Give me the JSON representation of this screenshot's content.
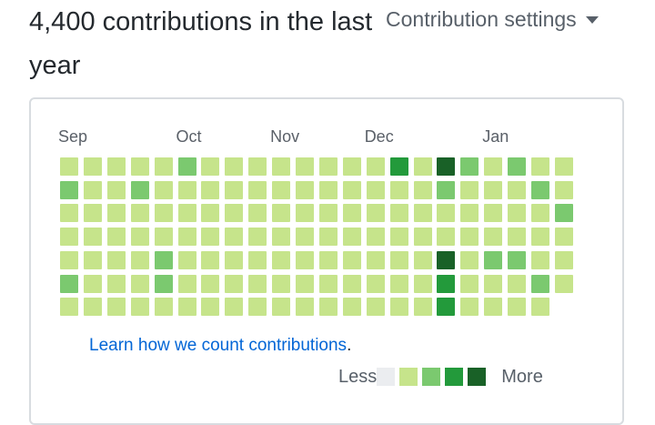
{
  "header": {
    "title": "4,400 contributions in the last year",
    "settings_label": "Contribution settings"
  },
  "calendar": {
    "months": [
      {
        "label": "Sep",
        "week": 0
      },
      {
        "label": "Oct",
        "week": 5
      },
      {
        "label": "Nov",
        "week": 9
      },
      {
        "label": "Dec",
        "week": 13
      },
      {
        "label": "Jan",
        "week": 18
      }
    ],
    "colors": [
      "#ebedf0",
      "#c6e48b",
      "#7bc96f",
      "#239a3b",
      "#196127"
    ],
    "weeks": [
      [
        1,
        2,
        1,
        1,
        1,
        2,
        1
      ],
      [
        1,
        1,
        1,
        1,
        1,
        1,
        1
      ],
      [
        1,
        1,
        1,
        1,
        1,
        1,
        1
      ],
      [
        1,
        2,
        1,
        1,
        1,
        1,
        1
      ],
      [
        1,
        1,
        1,
        1,
        2,
        2,
        1
      ],
      [
        2,
        1,
        1,
        1,
        1,
        1,
        1
      ],
      [
        1,
        1,
        1,
        1,
        1,
        1,
        1
      ],
      [
        1,
        1,
        1,
        1,
        1,
        1,
        1
      ],
      [
        1,
        1,
        1,
        1,
        1,
        1,
        1
      ],
      [
        1,
        1,
        1,
        1,
        1,
        1,
        1
      ],
      [
        1,
        1,
        1,
        1,
        1,
        1,
        1
      ],
      [
        1,
        1,
        1,
        1,
        1,
        1,
        1
      ],
      [
        1,
        1,
        1,
        1,
        1,
        1,
        1
      ],
      [
        1,
        1,
        1,
        1,
        1,
        1,
        1
      ],
      [
        3,
        1,
        1,
        1,
        1,
        1,
        1
      ],
      [
        1,
        1,
        1,
        1,
        1,
        1,
        1
      ],
      [
        4,
        2,
        1,
        1,
        4,
        3,
        3
      ],
      [
        2,
        1,
        1,
        1,
        1,
        1,
        1
      ],
      [
        1,
        1,
        1,
        1,
        2,
        1,
        1
      ],
      [
        2,
        1,
        1,
        1,
        2,
        1,
        1
      ],
      [
        1,
        2,
        1,
        1,
        1,
        2,
        1
      ],
      [
        1,
        1,
        2,
        1,
        1,
        1
      ]
    ]
  },
  "footer": {
    "learn_link": "Learn how we count contributions",
    "learn_period": ".",
    "legend_less": "Less",
    "legend_more": "More"
  }
}
